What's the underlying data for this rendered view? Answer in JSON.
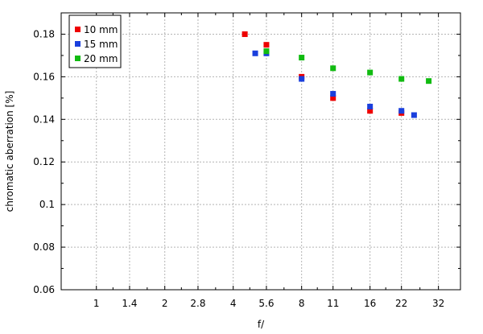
{
  "chart_data": {
    "type": "scatter",
    "title": "",
    "xlabel": "f/",
    "ylabel": "chromatic aberration [%]",
    "x_scale": "log2",
    "xlim": [
      0.7,
      40
    ],
    "ylim": [
      0.06,
      0.19
    ],
    "x_ticks": [
      1,
      1.4,
      2,
      2.8,
      4,
      5.6,
      8,
      11,
      16,
      22,
      32
    ],
    "x_tick_labels": [
      "1",
      "1.4",
      "2",
      "2.8",
      "4",
      "5.6",
      "8",
      "11",
      "16",
      "22",
      "32"
    ],
    "y_ticks": [
      0.06,
      0.08,
      0.1,
      0.12,
      0.14,
      0.16,
      0.18
    ],
    "y_tick_labels": [
      "0.06",
      "0.08",
      "0.1",
      "0.12",
      "0.14",
      "0.16",
      "0.18"
    ],
    "grid": true,
    "legend_position": "top-left",
    "series": [
      {
        "name": "10 mm",
        "color": "#ee0000",
        "points": [
          [
            4.5,
            0.18
          ],
          [
            5.6,
            0.175
          ],
          [
            8,
            0.16
          ],
          [
            11,
            0.15
          ],
          [
            16,
            0.144
          ],
          [
            22,
            0.143
          ]
        ]
      },
      {
        "name": "15 mm",
        "color": "#1a3fdd",
        "points": [
          [
            5,
            0.171
          ],
          [
            5.6,
            0.171
          ],
          [
            8,
            0.159
          ],
          [
            11,
            0.152
          ],
          [
            16,
            0.146
          ],
          [
            22,
            0.144
          ],
          [
            25,
            0.142
          ]
        ]
      },
      {
        "name": "20 mm",
        "color": "#11bb11",
        "points": [
          [
            5.6,
            0.172
          ],
          [
            8,
            0.169
          ],
          [
            11,
            0.164
          ],
          [
            16,
            0.162
          ],
          [
            22,
            0.159
          ],
          [
            29,
            0.158
          ]
        ]
      }
    ]
  }
}
